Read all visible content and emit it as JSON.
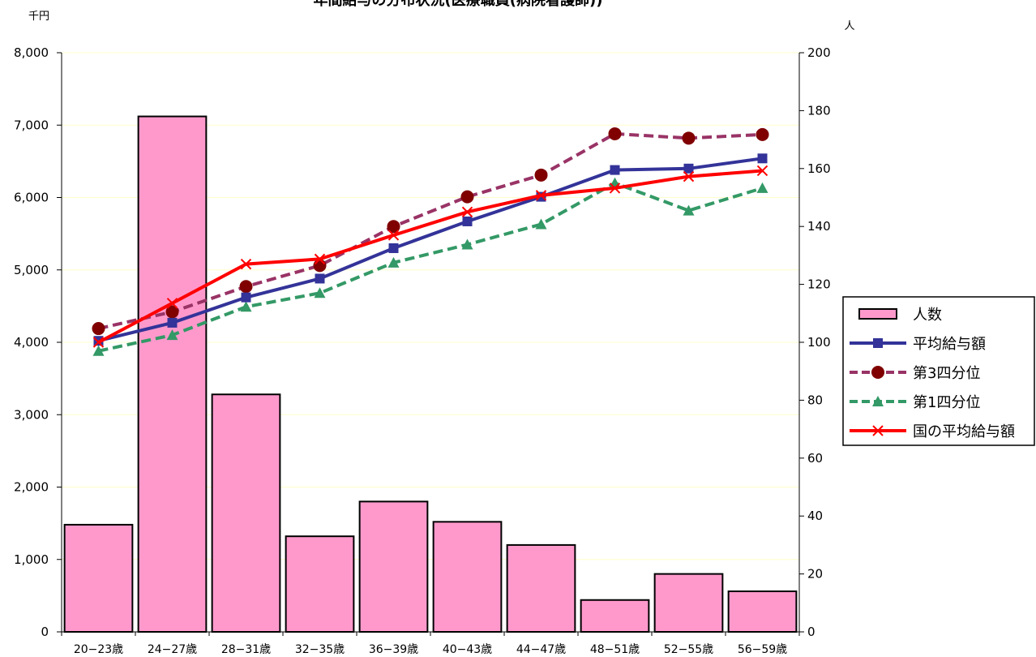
{
  "chart_data": {
    "type": "bar+line",
    "title": "年間給与の分布状況(医療職員(病院看護師))",
    "left_axis_unit": "千円",
    "right_axis_unit": "人",
    "categories": [
      "20−23歳",
      "24−27歳",
      "28−31歳",
      "32−35歳",
      "36−39歳",
      "40−43歳",
      "44−47歳",
      "48−51歳",
      "52−55歳",
      "56−59歳"
    ],
    "left_axis": {
      "min": 0,
      "max": 8000,
      "ticks": [
        0,
        1000,
        2000,
        3000,
        4000,
        5000,
        6000,
        7000,
        8000
      ],
      "tick_labels": [
        "0",
        "1,000",
        "2,000",
        "3,000",
        "4,000",
        "5,000",
        "6,000",
        "7,000",
        "8,000"
      ]
    },
    "right_axis": {
      "min": 0,
      "max": 200,
      "ticks": [
        0,
        20,
        40,
        60,
        80,
        100,
        120,
        140,
        160,
        180,
        200
      ],
      "tick_labels": [
        "0",
        "20",
        "40",
        "60",
        "80",
        "100",
        "120",
        "140",
        "160",
        "180",
        "200"
      ]
    },
    "grid": true,
    "legend_position": "right",
    "series": [
      {
        "name": "人数",
        "kind": "bar",
        "axis": "right",
        "color": "#ff99cc",
        "values": [
          37,
          178,
          82,
          33,
          45,
          38,
          30,
          11,
          20,
          14
        ]
      },
      {
        "name": "平均給与額",
        "kind": "line",
        "axis": "left",
        "color": "#333399",
        "marker": "square",
        "dash": "solid",
        "values": [
          4020,
          4270,
          4620,
          4880,
          5300,
          5670,
          6010,
          6380,
          6400,
          6540
        ]
      },
      {
        "name": "第3四分位",
        "kind": "line",
        "axis": "left",
        "color": "#993366",
        "marker_color": "#800000",
        "marker": "circle",
        "dash": "dashed",
        "values": [
          4190,
          4420,
          4770,
          5060,
          5600,
          6010,
          6310,
          6880,
          6820,
          6870
        ]
      },
      {
        "name": "第1四分位",
        "kind": "line",
        "axis": "left",
        "color": "#339966",
        "marker": "triangle",
        "dash": "dashed",
        "values": [
          3880,
          4100,
          4490,
          4680,
          5100,
          5350,
          5630,
          6200,
          5820,
          6130
        ]
      },
      {
        "name": "国の平均給与額",
        "kind": "line",
        "axis": "left",
        "color": "#ff0000",
        "marker": "x",
        "dash": "solid",
        "values": [
          4000,
          4540,
          5080,
          5150,
          5480,
          5800,
          6030,
          6130,
          6290,
          6370
        ]
      }
    ]
  }
}
